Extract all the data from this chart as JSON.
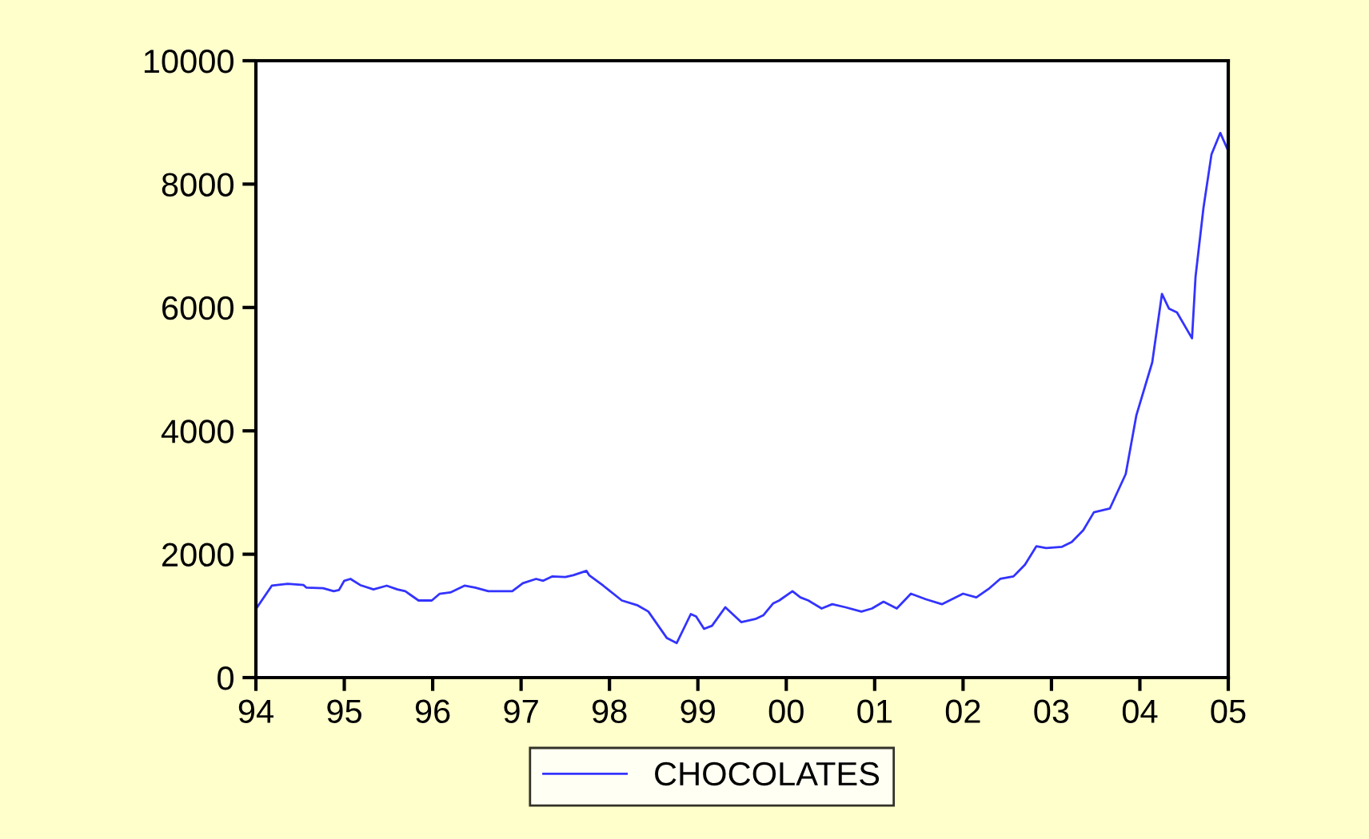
{
  "chart_data": {
    "type": "line",
    "x": [
      1994.0,
      1994.18,
      1994.36,
      1994.54,
      1994.57,
      1994.76,
      1994.88,
      1994.94,
      1995.0,
      1995.07,
      1995.18,
      1995.33,
      1995.48,
      1995.6,
      1995.69,
      1995.84,
      1995.99,
      1996.08,
      1996.2,
      1996.36,
      1996.48,
      1996.63,
      1996.9,
      1997.02,
      1997.17,
      1997.25,
      1997.35,
      1997.5,
      1997.59,
      1997.74,
      1997.77,
      1997.93,
      1998.14,
      1998.32,
      1998.44,
      1998.65,
      1998.76,
      1998.92,
      1998.98,
      1999.07,
      1999.16,
      1999.31,
      1999.49,
      1999.65,
      1999.74,
      1999.85,
      1999.92,
      2000.07,
      2000.16,
      2000.25,
      2000.4,
      2000.52,
      2000.67,
      2000.85,
      2000.97,
      2001.1,
      2001.25,
      2001.41,
      2001.58,
      2001.76,
      2002.0,
      2002.15,
      2002.3,
      2002.42,
      2002.57,
      2002.7,
      2002.83,
      2002.94,
      2003.12,
      2003.23,
      2003.36,
      2003.48,
      2003.66,
      2003.84,
      2003.96,
      2004.14,
      2004.25,
      2004.33,
      2004.42,
      2004.59,
      2004.63,
      2004.72,
      2004.81,
      2004.91,
      2004.99
    ],
    "series": [
      {
        "name": "CHOCOLATES",
        "color": "#3333ff",
        "values": [
          1110,
          1490,
          1520,
          1500,
          1460,
          1450,
          1400,
          1420,
          1570,
          1600,
          1500,
          1430,
          1490,
          1430,
          1400,
          1250,
          1250,
          1360,
          1380,
          1490,
          1460,
          1400,
          1400,
          1530,
          1600,
          1570,
          1640,
          1630,
          1660,
          1730,
          1660,
          1490,
          1250,
          1170,
          1070,
          640,
          560,
          1030,
          990,
          790,
          840,
          1140,
          900,
          950,
          1010,
          1200,
          1250,
          1400,
          1300,
          1250,
          1120,
          1190,
          1140,
          1070,
          1120,
          1230,
          1120,
          1360,
          1270,
          1190,
          1360,
          1300,
          1450,
          1600,
          1640,
          1830,
          2130,
          2100,
          2120,
          2200,
          2390,
          2680,
          2740,
          3300,
          4250,
          5110,
          6220,
          5980,
          5920,
          5500,
          6500,
          7620,
          8480,
          8830,
          8570
        ]
      }
    ],
    "xlim": [
      1994,
      2005
    ],
    "xticks": [
      {
        "value": 1994,
        "label": "94"
      },
      {
        "value": 1995,
        "label": "95"
      },
      {
        "value": 1996,
        "label": "96"
      },
      {
        "value": 1997,
        "label": "97"
      },
      {
        "value": 1998,
        "label": "98"
      },
      {
        "value": 1999,
        "label": "99"
      },
      {
        "value": 2000,
        "label": "00"
      },
      {
        "value": 2001,
        "label": "01"
      },
      {
        "value": 2002,
        "label": "02"
      },
      {
        "value": 2003,
        "label": "03"
      },
      {
        "value": 2004,
        "label": "04"
      },
      {
        "value": 2005,
        "label": "05"
      }
    ],
    "ylim": [
      0,
      10000
    ],
    "yticks": [
      0,
      2000,
      4000,
      6000,
      8000,
      10000
    ],
    "grid": false,
    "legend": "bottom"
  }
}
